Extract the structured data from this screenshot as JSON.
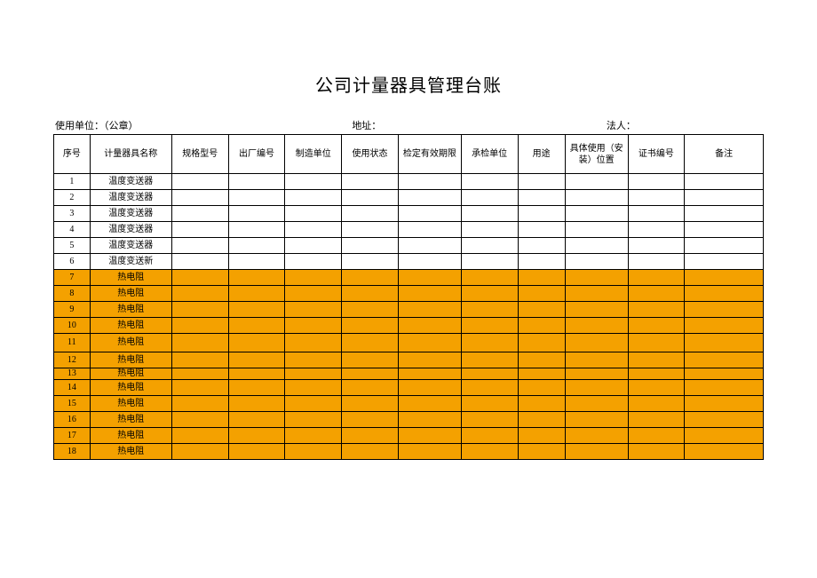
{
  "title": "公司计量器具管理台账",
  "meta": {
    "unit_label": "使用单位：（公章）",
    "address_label": "地址：",
    "legal_label": "法人："
  },
  "columns": [
    "序号",
    "计量器具名称",
    "规格型号",
    "出厂编号",
    "制造单位",
    "使用状态",
    "检定有效期限",
    "承检单位",
    "用途",
    "具体使用（安装）位置",
    "证书编号",
    "备注"
  ],
  "highlight_color": "#f4a100",
  "rows": [
    {
      "seq": "1",
      "name": "温度变送器",
      "hl": false,
      "cls": ""
    },
    {
      "seq": "2",
      "name": "温度变送器",
      "hl": false,
      "cls": ""
    },
    {
      "seq": "3",
      "name": "温度变送器",
      "hl": false,
      "cls": ""
    },
    {
      "seq": "4",
      "name": "温度变送器",
      "hl": false,
      "cls": ""
    },
    {
      "seq": "5",
      "name": "温度变送器",
      "hl": false,
      "cls": ""
    },
    {
      "seq": "6",
      "name": "温度变送新",
      "hl": false,
      "cls": ""
    },
    {
      "seq": "7",
      "name": "热电阻",
      "hl": true,
      "cls": ""
    },
    {
      "seq": "8",
      "name": "热电阻",
      "hl": true,
      "cls": ""
    },
    {
      "seq": "9",
      "name": "热电阻",
      "hl": true,
      "cls": ""
    },
    {
      "seq": "10",
      "name": "热电阻",
      "hl": true,
      "cls": ""
    },
    {
      "seq": "11",
      "name": "热电阻",
      "hl": true,
      "cls": "tall"
    },
    {
      "seq": "12",
      "name": "热电阻",
      "hl": true,
      "cls": ""
    },
    {
      "seq": "13",
      "name": "热电阻",
      "hl": true,
      "cls": "short"
    },
    {
      "seq": "14",
      "name": "热电阻",
      "hl": true,
      "cls": ""
    },
    {
      "seq": "15",
      "name": "热电阻",
      "hl": true,
      "cls": ""
    },
    {
      "seq": "16",
      "name": "热电阻",
      "hl": true,
      "cls": ""
    },
    {
      "seq": "17",
      "name": "热电阻",
      "hl": true,
      "cls": ""
    },
    {
      "seq": "18",
      "name": "热电阻",
      "hl": true,
      "cls": ""
    }
  ]
}
